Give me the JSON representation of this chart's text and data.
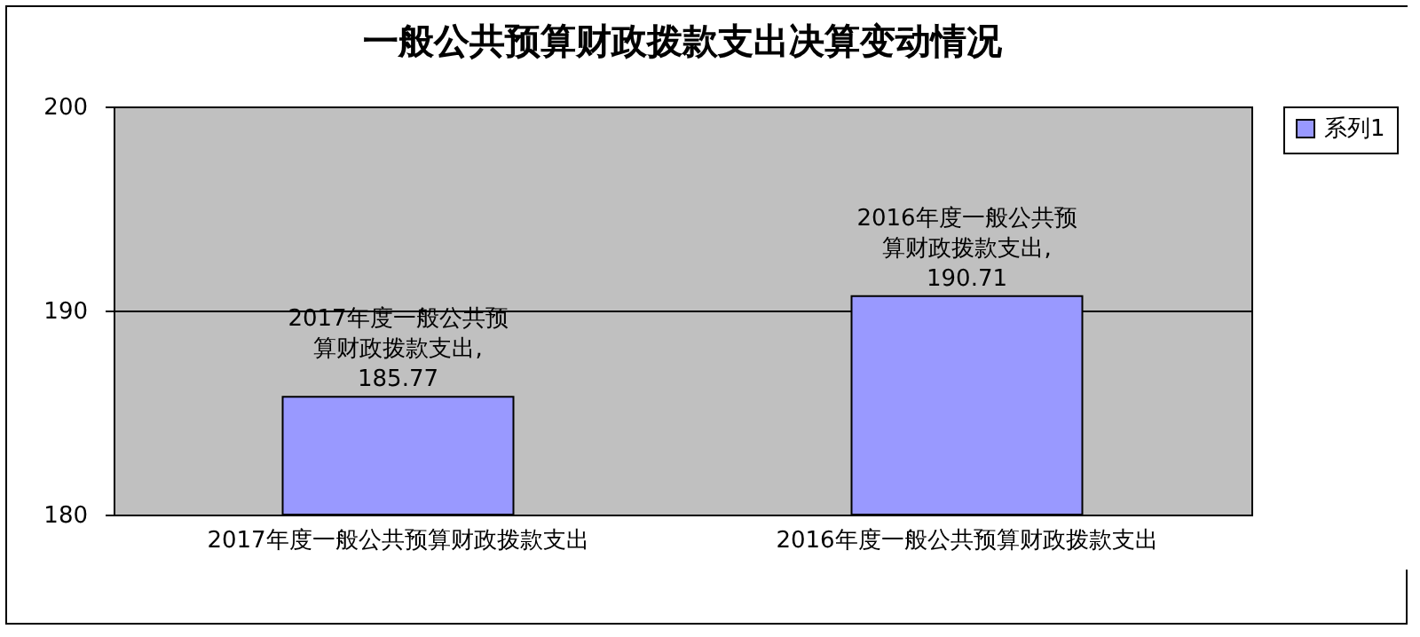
{
  "chart_data": {
    "type": "bar",
    "title": "一般公共预算财政拨款支出决算变动情况",
    "categories": [
      "2017年度一般公共预算财政拨款支出",
      "2016年度一般公共预算财政拨款支出"
    ],
    "series": [
      {
        "name": "系列1",
        "color": "#9999ff",
        "values": [
          185.77,
          190.71
        ],
        "value_labels": [
          "2017年度一般公共预算财政拨款支出,185.77",
          "2016年度一般公共预算财政拨款支出,190.71"
        ]
      }
    ],
    "ylim": [
      180,
      200
    ],
    "yticks": [
      180,
      190,
      200
    ],
    "grid": "y",
    "legend": "right"
  }
}
